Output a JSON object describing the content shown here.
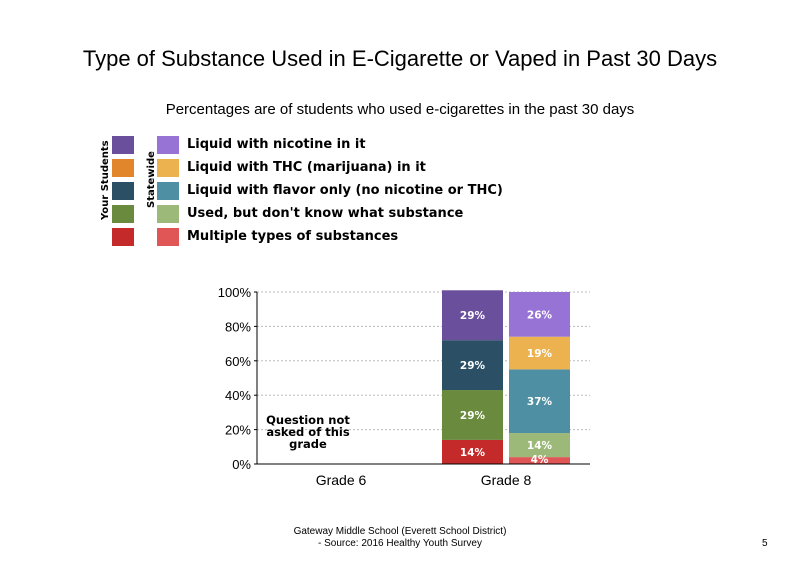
{
  "title": "Type of Substance Used in E-Cigarette or Vaped in Past 30 Days",
  "subtitle": "Percentages are of students who used e-cigarettes in the past 30 days",
  "legend": {
    "your_students_label": "Your Students",
    "statewide_label": "Statewide",
    "items": [
      {
        "label": "Liquid with nicotine in it",
        "your_color": "#6a4f9c",
        "state_color": "#9873d6"
      },
      {
        "label": "Liquid with THC (marijuana) in it",
        "your_color": "#e1862b",
        "state_color": "#ecb24f"
      },
      {
        "label": "Liquid with flavor only (no nicotine or THC)",
        "your_color": "#2b5066",
        "state_color": "#4f8fa3"
      },
      {
        "label": "Used, but don't know what substance",
        "your_color": "#6a8a3e",
        "state_color": "#9db97a"
      },
      {
        "label": "Multiple types of substances",
        "your_color": "#c52a2a",
        "state_color": "#e05555"
      }
    ]
  },
  "note": "Question not asked of this grade",
  "footer_line1": "Gateway Middle School (Everett School District)",
  "footer_line2": "- Source: 2016 Healthy Youth Survey",
  "page_number": "5",
  "chart_data": {
    "type": "bar",
    "stacked": true,
    "categories": [
      "Grade 6",
      "Grade 8"
    ],
    "ylim": [
      0,
      100
    ],
    "yticks": [
      "0%",
      "20%",
      "40%",
      "60%",
      "80%",
      "100%"
    ],
    "grid": true,
    "groups": [
      {
        "category": "Grade 6",
        "bars": []
      },
      {
        "category": "Grade 8",
        "bars": [
          {
            "group": "Your Students",
            "segments": [
              {
                "series": "Multiple types of substances",
                "value": 14,
                "label": "14%"
              },
              {
                "series": "Used, but don't know what substance",
                "value": 29,
                "label": "29%"
              },
              {
                "series": "Liquid with flavor only (no nicotine or THC)",
                "value": 29,
                "label": "29%"
              },
              {
                "series": "Liquid with THC (marijuana) in it",
                "value": 0,
                "label": ""
              },
              {
                "series": "Liquid with nicotine in it",
                "value": 29,
                "label": "29%"
              }
            ]
          },
          {
            "group": "Statewide",
            "segments": [
              {
                "series": "Multiple types of substances",
                "value": 4,
                "label": "4%"
              },
              {
                "series": "Used, but don't know what substance",
                "value": 14,
                "label": "14%"
              },
              {
                "series": "Liquid with flavor only (no nicotine or THC)",
                "value": 37,
                "label": "37%"
              },
              {
                "series": "Liquid with THC (marijuana) in it",
                "value": 19,
                "label": "19%"
              },
              {
                "series": "Liquid with nicotine in it",
                "value": 26,
                "label": "26%"
              }
            ]
          }
        ]
      }
    ]
  }
}
